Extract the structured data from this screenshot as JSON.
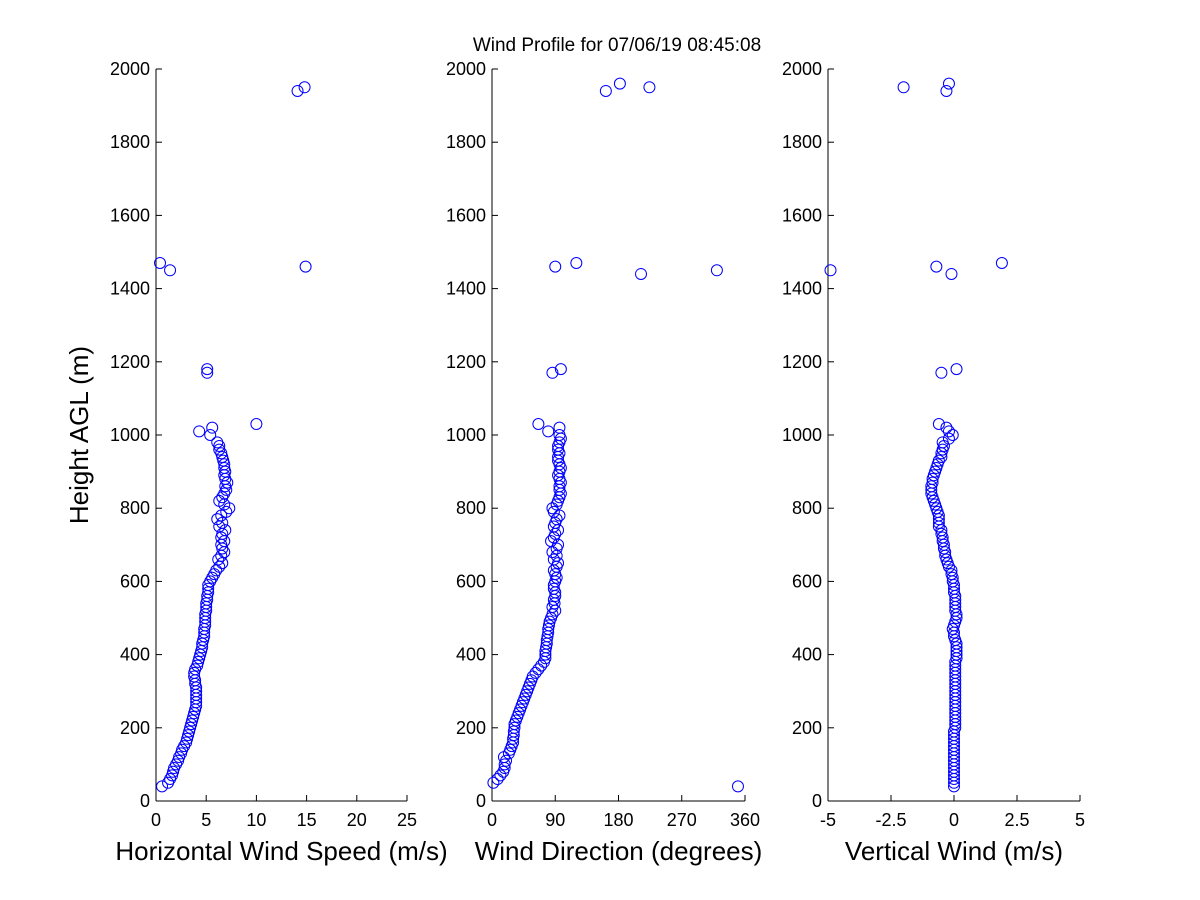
{
  "figure": {
    "title": "Wind Profile for  07/06/19 08:45:08",
    "marker_color": "#0000ff",
    "axis_color": "#000000",
    "background": "#ffffff"
  },
  "chart_data": [
    {
      "type": "scatter",
      "xlabel": "Horizontal Wind Speed (m/s)",
      "ylabel": "Height AGL (m)",
      "xlim": [
        0,
        25
      ],
      "ylim": [
        0,
        2000
      ],
      "xticks": [
        0,
        5,
        10,
        15,
        20,
        25
      ],
      "xtick_labels": [
        "0",
        "5",
        "10",
        "15",
        "20",
        "25"
      ],
      "yticks": [
        0,
        200,
        400,
        600,
        800,
        1000,
        1200,
        1400,
        1600,
        1800,
        2000
      ],
      "ytick_labels": [
        "0",
        "200",
        "400",
        "600",
        "800",
        "1000",
        "1200",
        "1400",
        "1600",
        "1800",
        "2000"
      ],
      "points": [
        [
          0.6,
          40
        ],
        [
          1.2,
          50
        ],
        [
          1.4,
          60
        ],
        [
          1.6,
          70
        ],
        [
          1.7,
          80
        ],
        [
          1.8,
          90
        ],
        [
          2.0,
          100
        ],
        [
          2.2,
          110
        ],
        [
          2.3,
          120
        ],
        [
          2.5,
          130
        ],
        [
          2.6,
          140
        ],
        [
          2.8,
          150
        ],
        [
          3.0,
          160
        ],
        [
          3.1,
          170
        ],
        [
          3.2,
          180
        ],
        [
          3.3,
          190
        ],
        [
          3.4,
          200
        ],
        [
          3.5,
          210
        ],
        [
          3.6,
          220
        ],
        [
          3.7,
          230
        ],
        [
          3.8,
          240
        ],
        [
          3.9,
          250
        ],
        [
          4.0,
          260
        ],
        [
          4.0,
          270
        ],
        [
          4.0,
          280
        ],
        [
          4.0,
          290
        ],
        [
          4.0,
          300
        ],
        [
          4.0,
          310
        ],
        [
          3.9,
          320
        ],
        [
          3.9,
          330
        ],
        [
          3.8,
          340
        ],
        [
          3.8,
          350
        ],
        [
          3.9,
          360
        ],
        [
          4.1,
          370
        ],
        [
          4.2,
          380
        ],
        [
          4.3,
          390
        ],
        [
          4.4,
          400
        ],
        [
          4.5,
          410
        ],
        [
          4.6,
          420
        ],
        [
          4.6,
          430
        ],
        [
          4.7,
          440
        ],
        [
          4.8,
          450
        ],
        [
          4.8,
          460
        ],
        [
          4.8,
          470
        ],
        [
          4.9,
          480
        ],
        [
          4.9,
          490
        ],
        [
          4.9,
          500
        ],
        [
          4.9,
          510
        ],
        [
          5.0,
          520
        ],
        [
          5.0,
          530
        ],
        [
          5.0,
          540
        ],
        [
          5.1,
          550
        ],
        [
          5.1,
          560
        ],
        [
          5.2,
          570
        ],
        [
          5.2,
          580
        ],
        [
          5.2,
          590
        ],
        [
          5.4,
          600
        ],
        [
          5.6,
          610
        ],
        [
          5.8,
          620
        ],
        [
          6.0,
          630
        ],
        [
          6.3,
          640
        ],
        [
          6.6,
          650
        ],
        [
          6.2,
          660
        ],
        [
          6.5,
          670
        ],
        [
          6.8,
          680
        ],
        [
          6.6,
          690
        ],
        [
          6.5,
          700
        ],
        [
          6.8,
          710
        ],
        [
          6.5,
          720
        ],
        [
          6.6,
          730
        ],
        [
          6.9,
          740
        ],
        [
          6.3,
          750
        ],
        [
          6.6,
          760
        ],
        [
          6.1,
          770
        ],
        [
          6.5,
          780
        ],
        [
          7.0,
          790
        ],
        [
          7.3,
          800
        ],
        [
          6.8,
          810
        ],
        [
          6.3,
          820
        ],
        [
          6.6,
          830
        ],
        [
          6.8,
          840
        ],
        [
          7.0,
          850
        ],
        [
          6.9,
          860
        ],
        [
          7.1,
          870
        ],
        [
          6.9,
          880
        ],
        [
          6.8,
          890
        ],
        [
          6.9,
          900
        ],
        [
          6.8,
          910
        ],
        [
          6.8,
          920
        ],
        [
          6.7,
          930
        ],
        [
          6.6,
          940
        ],
        [
          6.5,
          950
        ],
        [
          6.3,
          960
        ],
        [
          6.3,
          970
        ],
        [
          6.1,
          980
        ],
        [
          5.4,
          1000
        ],
        [
          4.3,
          1010
        ],
        [
          5.6,
          1020
        ],
        [
          10.0,
          1030
        ],
        [
          5.1,
          1170
        ],
        [
          5.1,
          1180
        ],
        [
          1.4,
          1450
        ],
        [
          0.4,
          1470
        ],
        [
          14.9,
          1460
        ],
        [
          14.1,
          1940
        ],
        [
          14.8,
          1950
        ]
      ]
    },
    {
      "type": "scatter",
      "xlabel": "Wind Direction (degrees)",
      "ylabel": "",
      "xlim": [
        0,
        360
      ],
      "ylim": [
        0,
        2000
      ],
      "xticks": [
        0,
        90,
        180,
        270,
        360
      ],
      "xtick_labels": [
        "0",
        "90",
        "180",
        "270",
        "360"
      ],
      "yticks": [
        0,
        200,
        400,
        600,
        800,
        1000,
        1200,
        1400,
        1600,
        1800,
        2000
      ],
      "ytick_labels": [
        "0",
        "200",
        "400",
        "600",
        "800",
        "1000",
        "1200",
        "1400",
        "1600",
        "1800",
        "2000"
      ],
      "points": [
        [
          350,
          40
        ],
        [
          2,
          50
        ],
        [
          8,
          60
        ],
        [
          12,
          70
        ],
        [
          16,
          80
        ],
        [
          18,
          90
        ],
        [
          18,
          100
        ],
        [
          20,
          110
        ],
        [
          17,
          120
        ],
        [
          24,
          130
        ],
        [
          26,
          140
        ],
        [
          28,
          150
        ],
        [
          30,
          160
        ],
        [
          30,
          170
        ],
        [
          31,
          180
        ],
        [
          31,
          190
        ],
        [
          32,
          200
        ],
        [
          32,
          210
        ],
        [
          34,
          220
        ],
        [
          36,
          230
        ],
        [
          38,
          240
        ],
        [
          40,
          250
        ],
        [
          42,
          260
        ],
        [
          44,
          270
        ],
        [
          46,
          280
        ],
        [
          48,
          290
        ],
        [
          50,
          300
        ],
        [
          52,
          310
        ],
        [
          54,
          320
        ],
        [
          56,
          330
        ],
        [
          58,
          340
        ],
        [
          62,
          350
        ],
        [
          66,
          360
        ],
        [
          70,
          370
        ],
        [
          74,
          380
        ],
        [
          76,
          390
        ],
        [
          76,
          400
        ],
        [
          76,
          410
        ],
        [
          77,
          420
        ],
        [
          78,
          430
        ],
        [
          78,
          440
        ],
        [
          79,
          450
        ],
        [
          80,
          460
        ],
        [
          80,
          470
        ],
        [
          81,
          480
        ],
        [
          82,
          490
        ],
        [
          84,
          500
        ],
        [
          86,
          510
        ],
        [
          90,
          520
        ],
        [
          86,
          530
        ],
        [
          89,
          540
        ],
        [
          88,
          550
        ],
        [
          90,
          560
        ],
        [
          90,
          570
        ],
        [
          88,
          580
        ],
        [
          88,
          590
        ],
        [
          90,
          600
        ],
        [
          92,
          610
        ],
        [
          90,
          620
        ],
        [
          88,
          630
        ],
        [
          92,
          640
        ],
        [
          94,
          650
        ],
        [
          88,
          660
        ],
        [
          92,
          670
        ],
        [
          86,
          680
        ],
        [
          92,
          690
        ],
        [
          94,
          700
        ],
        [
          84,
          710
        ],
        [
          88,
          720
        ],
        [
          90,
          730
        ],
        [
          94,
          740
        ],
        [
          88,
          750
        ],
        [
          90,
          760
        ],
        [
          92,
          770
        ],
        [
          96,
          780
        ],
        [
          88,
          790
        ],
        [
          86,
          800
        ],
        [
          92,
          810
        ],
        [
          94,
          820
        ],
        [
          96,
          830
        ],
        [
          98,
          840
        ],
        [
          96,
          850
        ],
        [
          96,
          860
        ],
        [
          98,
          870
        ],
        [
          96,
          880
        ],
        [
          94,
          890
        ],
        [
          96,
          900
        ],
        [
          98,
          910
        ],
        [
          96,
          920
        ],
        [
          94,
          930
        ],
        [
          94,
          940
        ],
        [
          96,
          950
        ],
        [
          94,
          960
        ],
        [
          94,
          970
        ],
        [
          96,
          980
        ],
        [
          98,
          990
        ],
        [
          96,
          1000
        ],
        [
          80,
          1010
        ],
        [
          96,
          1020
        ],
        [
          66,
          1030
        ],
        [
          86,
          1170
        ],
        [
          98,
          1180
        ],
        [
          90,
          1460
        ],
        [
          120,
          1470
        ],
        [
          212,
          1440
        ],
        [
          320,
          1450
        ],
        [
          162,
          1940
        ],
        [
          182,
          1960
        ],
        [
          224,
          1950
        ]
      ]
    },
    {
      "type": "scatter",
      "xlabel": "Vertical Wind (m/s)",
      "ylabel": "",
      "xlim": [
        -5,
        5
      ],
      "ylim": [
        0,
        2000
      ],
      "xticks": [
        -5,
        -2.5,
        0,
        2.5,
        5
      ],
      "xtick_labels": [
        "-5",
        "-2.5",
        "0",
        "2.5",
        "5"
      ],
      "yticks": [
        0,
        200,
        400,
        600,
        800,
        1000,
        1200,
        1400,
        1600,
        1800,
        2000
      ],
      "ytick_labels": [
        "0",
        "200",
        "400",
        "600",
        "800",
        "1000",
        "1200",
        "1400",
        "1600",
        "1800",
        "2000"
      ],
      "points": [
        [
          0.0,
          40
        ],
        [
          0.0,
          50
        ],
        [
          0.0,
          60
        ],
        [
          0.0,
          70
        ],
        [
          0.0,
          80
        ],
        [
          0.0,
          90
        ],
        [
          0.0,
          100
        ],
        [
          0.0,
          110
        ],
        [
          0.0,
          120
        ],
        [
          0.0,
          130
        ],
        [
          0.0,
          140
        ],
        [
          0.0,
          150
        ],
        [
          0.0,
          160
        ],
        [
          0.0,
          170
        ],
        [
          0.0,
          180
        ],
        [
          0.0,
          190
        ],
        [
          0.05,
          200
        ],
        [
          0.05,
          210
        ],
        [
          0.05,
          220
        ],
        [
          0.05,
          230
        ],
        [
          0.05,
          240
        ],
        [
          0.05,
          250
        ],
        [
          0.05,
          260
        ],
        [
          0.05,
          270
        ],
        [
          0.05,
          280
        ],
        [
          0.05,
          290
        ],
        [
          0.05,
          300
        ],
        [
          0.05,
          310
        ],
        [
          0.05,
          320
        ],
        [
          0.05,
          330
        ],
        [
          0.05,
          340
        ],
        [
          0.05,
          350
        ],
        [
          0.05,
          360
        ],
        [
          0.05,
          370
        ],
        [
          0.05,
          380
        ],
        [
          0.1,
          390
        ],
        [
          0.1,
          400
        ],
        [
          0.1,
          410
        ],
        [
          0.1,
          420
        ],
        [
          0.1,
          430
        ],
        [
          0.05,
          440
        ],
        [
          0.0,
          450
        ],
        [
          0.0,
          460
        ],
        [
          -0.05,
          470
        ],
        [
          0.0,
          480
        ],
        [
          0.05,
          490
        ],
        [
          0.1,
          500
        ],
        [
          0.1,
          510
        ],
        [
          0.05,
          520
        ],
        [
          0.05,
          530
        ],
        [
          0.05,
          540
        ],
        [
          0.05,
          550
        ],
        [
          0.05,
          560
        ],
        [
          0.0,
          570
        ],
        [
          0.0,
          580
        ],
        [
          0.0,
          590
        ],
        [
          -0.05,
          600
        ],
        [
          -0.05,
          610
        ],
        [
          -0.1,
          620
        ],
        [
          -0.1,
          630
        ],
        [
          -0.2,
          640
        ],
        [
          -0.25,
          650
        ],
        [
          -0.3,
          660
        ],
        [
          -0.35,
          670
        ],
        [
          -0.35,
          680
        ],
        [
          -0.4,
          690
        ],
        [
          -0.4,
          700
        ],
        [
          -0.45,
          710
        ],
        [
          -0.45,
          720
        ],
        [
          -0.5,
          730
        ],
        [
          -0.5,
          740
        ],
        [
          -0.6,
          750
        ],
        [
          -0.6,
          760
        ],
        [
          -0.6,
          770
        ],
        [
          -0.6,
          780
        ],
        [
          -0.65,
          790
        ],
        [
          -0.7,
          800
        ],
        [
          -0.75,
          810
        ],
        [
          -0.8,
          820
        ],
        [
          -0.85,
          830
        ],
        [
          -0.9,
          840
        ],
        [
          -0.9,
          850
        ],
        [
          -0.9,
          860
        ],
        [
          -0.85,
          870
        ],
        [
          -0.85,
          880
        ],
        [
          -0.8,
          890
        ],
        [
          -0.75,
          900
        ],
        [
          -0.7,
          910
        ],
        [
          -0.65,
          920
        ],
        [
          -0.6,
          930
        ],
        [
          -0.5,
          940
        ],
        [
          -0.5,
          950
        ],
        [
          -0.45,
          960
        ],
        [
          -0.4,
          970
        ],
        [
          -0.45,
          980
        ],
        [
          -0.2,
          990
        ],
        [
          -0.05,
          1000
        ],
        [
          -0.2,
          1010
        ],
        [
          -0.3,
          1020
        ],
        [
          -0.6,
          1030
        ],
        [
          -0.5,
          1170
        ],
        [
          0.1,
          1180
        ],
        [
          -4.9,
          1450
        ],
        [
          -0.7,
          1460
        ],
        [
          1.9,
          1470
        ],
        [
          -0.1,
          1440
        ],
        [
          -2.0,
          1950
        ],
        [
          -0.3,
          1940
        ],
        [
          -0.2,
          1960
        ]
      ]
    }
  ]
}
